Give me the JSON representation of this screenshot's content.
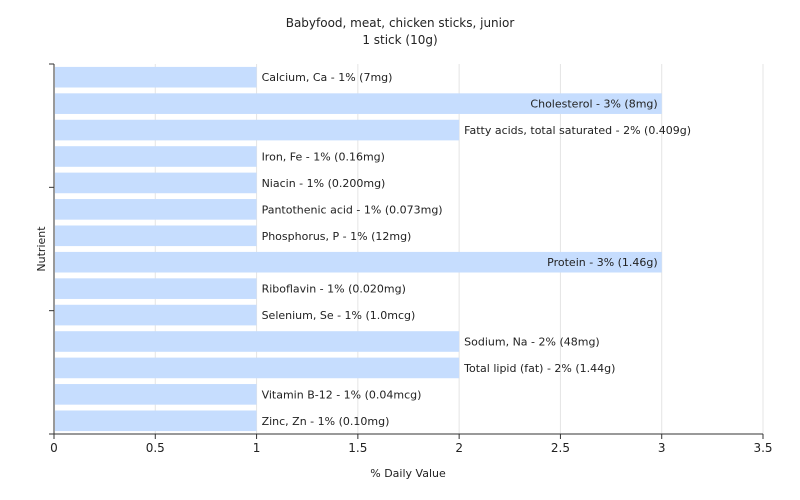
{
  "chart_data": {
    "type": "bar",
    "orientation": "horizontal",
    "title": "Babyfood, meat, chicken sticks, junior",
    "subtitle": "1 stick (10g)",
    "xlabel": "% Daily Value",
    "ylabel": "Nutrient",
    "xlim": [
      0,
      3.5
    ],
    "xticks": [
      "0",
      "0.5",
      "1",
      "1.5",
      "2",
      "2.5",
      "3",
      "3.5"
    ],
    "grid": true,
    "bar_color": "#c6ddfe",
    "categories": [
      "Calcium, Ca",
      "Cholesterol",
      "Fatty acids, total saturated",
      "Iron, Fe",
      "Niacin",
      "Pantothenic acid",
      "Phosphorus, P",
      "Protein",
      "Riboflavin",
      "Selenium, Se",
      "Sodium, Na",
      "Total lipid (fat)",
      "Vitamin B-12",
      "Zinc, Zn"
    ],
    "values": [
      1,
      3,
      2,
      1,
      1,
      1,
      1,
      3,
      1,
      1,
      2,
      2,
      1,
      1
    ],
    "data_labels": [
      "Calcium, Ca - 1% (7mg)",
      "Cholesterol - 3% (8mg)",
      "Fatty acids, total saturated - 2% (0.409g)",
      "Iron, Fe - 1% (0.16mg)",
      "Niacin - 1% (0.200mg)",
      "Pantothenic acid - 1% (0.073mg)",
      "Phosphorus, P - 1% (12mg)",
      "Protein - 3% (1.46g)",
      "Riboflavin - 1% (0.020mg)",
      "Selenium, Se - 1% (1.0mcg)",
      "Sodium, Na - 2% (48mg)",
      "Total lipid (fat) - 2% (1.44g)",
      "Vitamin B-12 - 1% (0.04mcg)",
      "Zinc, Zn - 1% (0.10mg)"
    ]
  }
}
